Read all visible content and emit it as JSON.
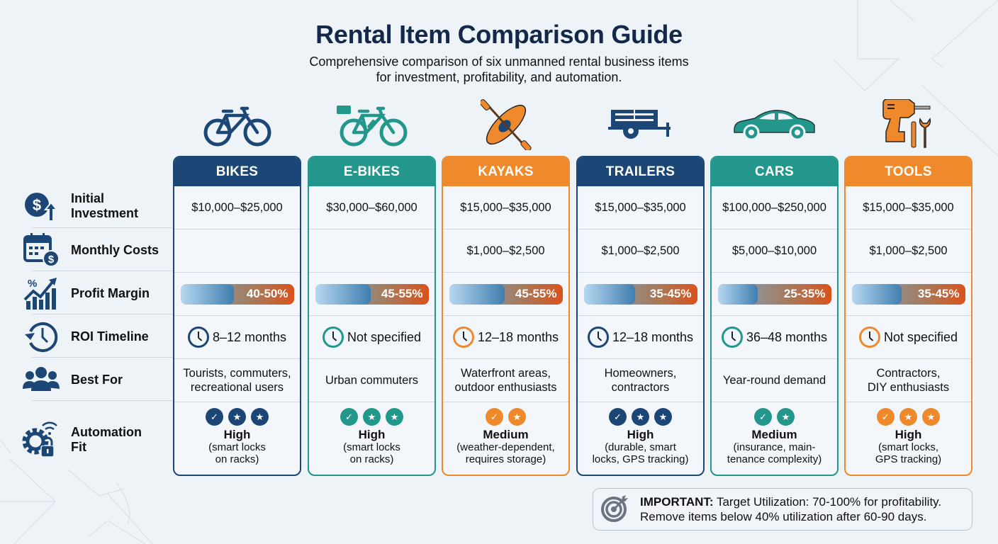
{
  "header": {
    "title": "Rental Item Comparison Guide",
    "subtitle_line1": "Comprehensive comparison of six unmanned rental business items",
    "subtitle_line2": "for investment, profitability, and automation."
  },
  "colors": {
    "navy": "#1b4676",
    "teal": "#23978b",
    "orange": "#ee8a2b",
    "title": "#14294a",
    "background": "#eef3f8"
  },
  "row_labels": [
    {
      "key": "initial_investment",
      "line1": "Initial",
      "line2": "Investment",
      "icon": "dollar-growth-icon"
    },
    {
      "key": "monthly_costs",
      "line1": "Monthly Costs",
      "line2": "",
      "icon": "calendar-dollar-icon"
    },
    {
      "key": "profit_margin",
      "line1": "Profit Margin",
      "line2": "",
      "icon": "chart-trend-up-icon"
    },
    {
      "key": "roi_timeline",
      "line1": "ROI Timeline",
      "line2": "",
      "icon": "history-clock-icon"
    },
    {
      "key": "best_for",
      "line1": "Best For",
      "line2": "",
      "icon": "users-group-icon"
    },
    {
      "key": "automation_fit",
      "line1": "Automation",
      "line2": "Fit",
      "icon": "gear-lock-wifi-icon"
    }
  ],
  "items": [
    {
      "name": "BIKES",
      "theme": "navy",
      "icon": "bicycle-icon",
      "initial_investment": "$10,000–$25,000",
      "monthly_costs": "",
      "profit_margin": "40-50%",
      "profit_fill_pct": 47,
      "roi_timeline": "8–12 months",
      "best_for_line1": "Tourists, commuters,",
      "best_for_line2": "recreational users",
      "automation_badges": [
        "check",
        "star",
        "star"
      ],
      "automation_level": "High",
      "automation_note_line1": "(smart locks",
      "automation_note_line2": "on racks)"
    },
    {
      "name": "E-BIKES",
      "theme": "teal",
      "icon": "e-bike-icon",
      "initial_investment": "$30,000–$60,000",
      "monthly_costs": "",
      "profit_margin": "45-55%",
      "profit_fill_pct": 49,
      "roi_timeline": "Not specified",
      "best_for_line1": "Urban commuters",
      "best_for_line2": "",
      "automation_badges": [
        "check",
        "star",
        "star"
      ],
      "automation_level": "High",
      "automation_note_line1": "(smart locks",
      "automation_note_line2": "on racks)"
    },
    {
      "name": "KAYAKS",
      "theme": "orange",
      "icon": "kayak-icon",
      "initial_investment": "$15,000–$35,000",
      "monthly_costs": "$1,000–$2,500",
      "profit_margin": "45-55%",
      "profit_fill_pct": 49,
      "roi_timeline": "12–18 months",
      "best_for_line1": "Waterfront areas,",
      "best_for_line2": "outdoor enthusiasts",
      "automation_badges": [
        "check",
        "star"
      ],
      "automation_level": "Medium",
      "automation_note_line1": "(weather-dependent,",
      "automation_note_line2": "requires storage)"
    },
    {
      "name": "TRAILERS",
      "theme": "navy",
      "icon": "trailer-icon",
      "initial_investment": "$15,000–$35,000",
      "monthly_costs": "$1,000–$2,500",
      "profit_margin": "35-45%",
      "profit_fill_pct": 45,
      "roi_timeline": "12–18 months",
      "best_for_line1": "Homeowners,",
      "best_for_line2": "contractors",
      "automation_badges": [
        "check",
        "star",
        "star"
      ],
      "automation_level": "High",
      "automation_note_line1": "(durable, smart",
      "automation_note_line2": "locks, GPS tracking)"
    },
    {
      "name": "CARS",
      "theme": "teal",
      "icon": "car-icon",
      "initial_investment": "$100,000–$250,000",
      "monthly_costs": "$5,000–$10,000",
      "profit_margin": "25-35%",
      "profit_fill_pct": 35,
      "roi_timeline": "36–48 months",
      "best_for_line1": "Year-round demand",
      "best_for_line2": "",
      "automation_badges": [
        "check",
        "star"
      ],
      "automation_level": "Medium",
      "automation_note_line1": "(insurance, main-",
      "automation_note_line2": "tenance complexity)"
    },
    {
      "name": "TOOLS",
      "theme": "orange",
      "icon": "power-drill-tools-icon",
      "initial_investment": "$15,000–$35,000",
      "monthly_costs": "$1,000–$2,500",
      "profit_margin": "35-45%",
      "profit_fill_pct": 44,
      "roi_timeline": "Not specified",
      "best_for_line1": "Contractors,",
      "best_for_line2": "DIY enthusiasts",
      "automation_badges": [
        "check",
        "star",
        "star"
      ],
      "automation_level": "High",
      "automation_note_line1": "(smart locks,",
      "automation_note_line2": "GPS tracking)"
    }
  ],
  "note": {
    "icon": "target-icon",
    "label": "IMPORTANT:",
    "line1_rest": " Target Utilization: 70-100% for profitability.",
    "line2": "Remove items below 40% utilization after 60-90 days."
  }
}
